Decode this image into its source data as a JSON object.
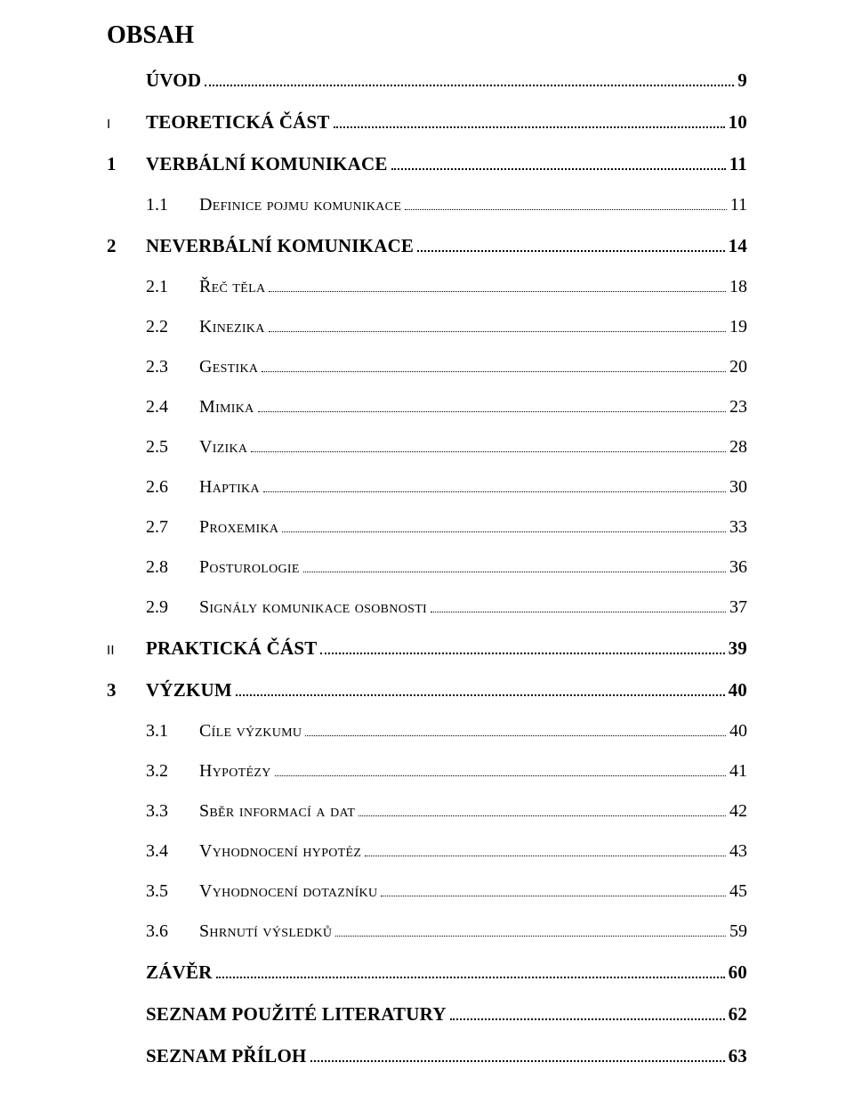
{
  "title": "OBSAH",
  "toc": [
    {
      "level": 0,
      "num": "",
      "label": "ÚVOD",
      "page": "9"
    },
    {
      "level": 1,
      "part": "I",
      "num": "",
      "label": "TEORETICKÁ ČÁST",
      "page": "10"
    },
    {
      "level": 1,
      "num": "1",
      "label": "VERBÁLNÍ KOMUNIKACE",
      "page": "11"
    },
    {
      "level": 2,
      "num": "1.1",
      "label": "Definice pojmu komunikace",
      "page": "11"
    },
    {
      "level": 1,
      "num": "2",
      "label": "NEVERBÁLNÍ KOMUNIKACE",
      "page": "14"
    },
    {
      "level": 2,
      "num": "2.1",
      "label": "Řeč těla",
      "page": "18"
    },
    {
      "level": 2,
      "num": "2.2",
      "label": "Kinezika",
      "page": "19"
    },
    {
      "level": 2,
      "num": "2.3",
      "label": "Gestika",
      "page": "20"
    },
    {
      "level": 2,
      "num": "2.4",
      "label": "Mimika",
      "page": "23"
    },
    {
      "level": 2,
      "num": "2.5",
      "label": "Vizika",
      "page": "28"
    },
    {
      "level": 2,
      "num": "2.6",
      "label": "Haptika",
      "page": "30"
    },
    {
      "level": 2,
      "num": "2.7",
      "label": "Proxemika",
      "page": "33"
    },
    {
      "level": 2,
      "num": "2.8",
      "label": "Posturologie",
      "page": "36"
    },
    {
      "level": 2,
      "num": "2.9",
      "label": "Signály komunikace osobnosti",
      "page": "37"
    },
    {
      "level": 1,
      "part": "II",
      "num": "",
      "label": "PRAKTICKÁ ČÁST",
      "page": "39"
    },
    {
      "level": 1,
      "num": "3",
      "label": "VÝZKUM",
      "page": "40"
    },
    {
      "level": 2,
      "num": "3.1",
      "label": "Cíle výzkumu",
      "page": "40"
    },
    {
      "level": 2,
      "num": "3.2",
      "label": "Hypotézy",
      "page": "41"
    },
    {
      "level": 2,
      "num": "3.3",
      "label": "Sběr informací a dat",
      "page": "42"
    },
    {
      "level": 2,
      "num": "3.4",
      "label": "Vyhodnocení hypotéz",
      "page": "43"
    },
    {
      "level": 2,
      "num": "3.5",
      "label": "Vyhodnocení dotazníku",
      "page": "45"
    },
    {
      "level": 2,
      "num": "3.6",
      "label": "Shrnutí výsledků",
      "page": "59"
    },
    {
      "level": 0,
      "num": "",
      "label": "ZÁVĚR",
      "page": "60"
    },
    {
      "level": 0,
      "num": "",
      "label": "SEZNAM POUŽITÉ LITERATURY",
      "page": "62"
    },
    {
      "level": 0,
      "num": "",
      "label": "SEZNAM PŘÍLOH",
      "page": "63"
    }
  ]
}
